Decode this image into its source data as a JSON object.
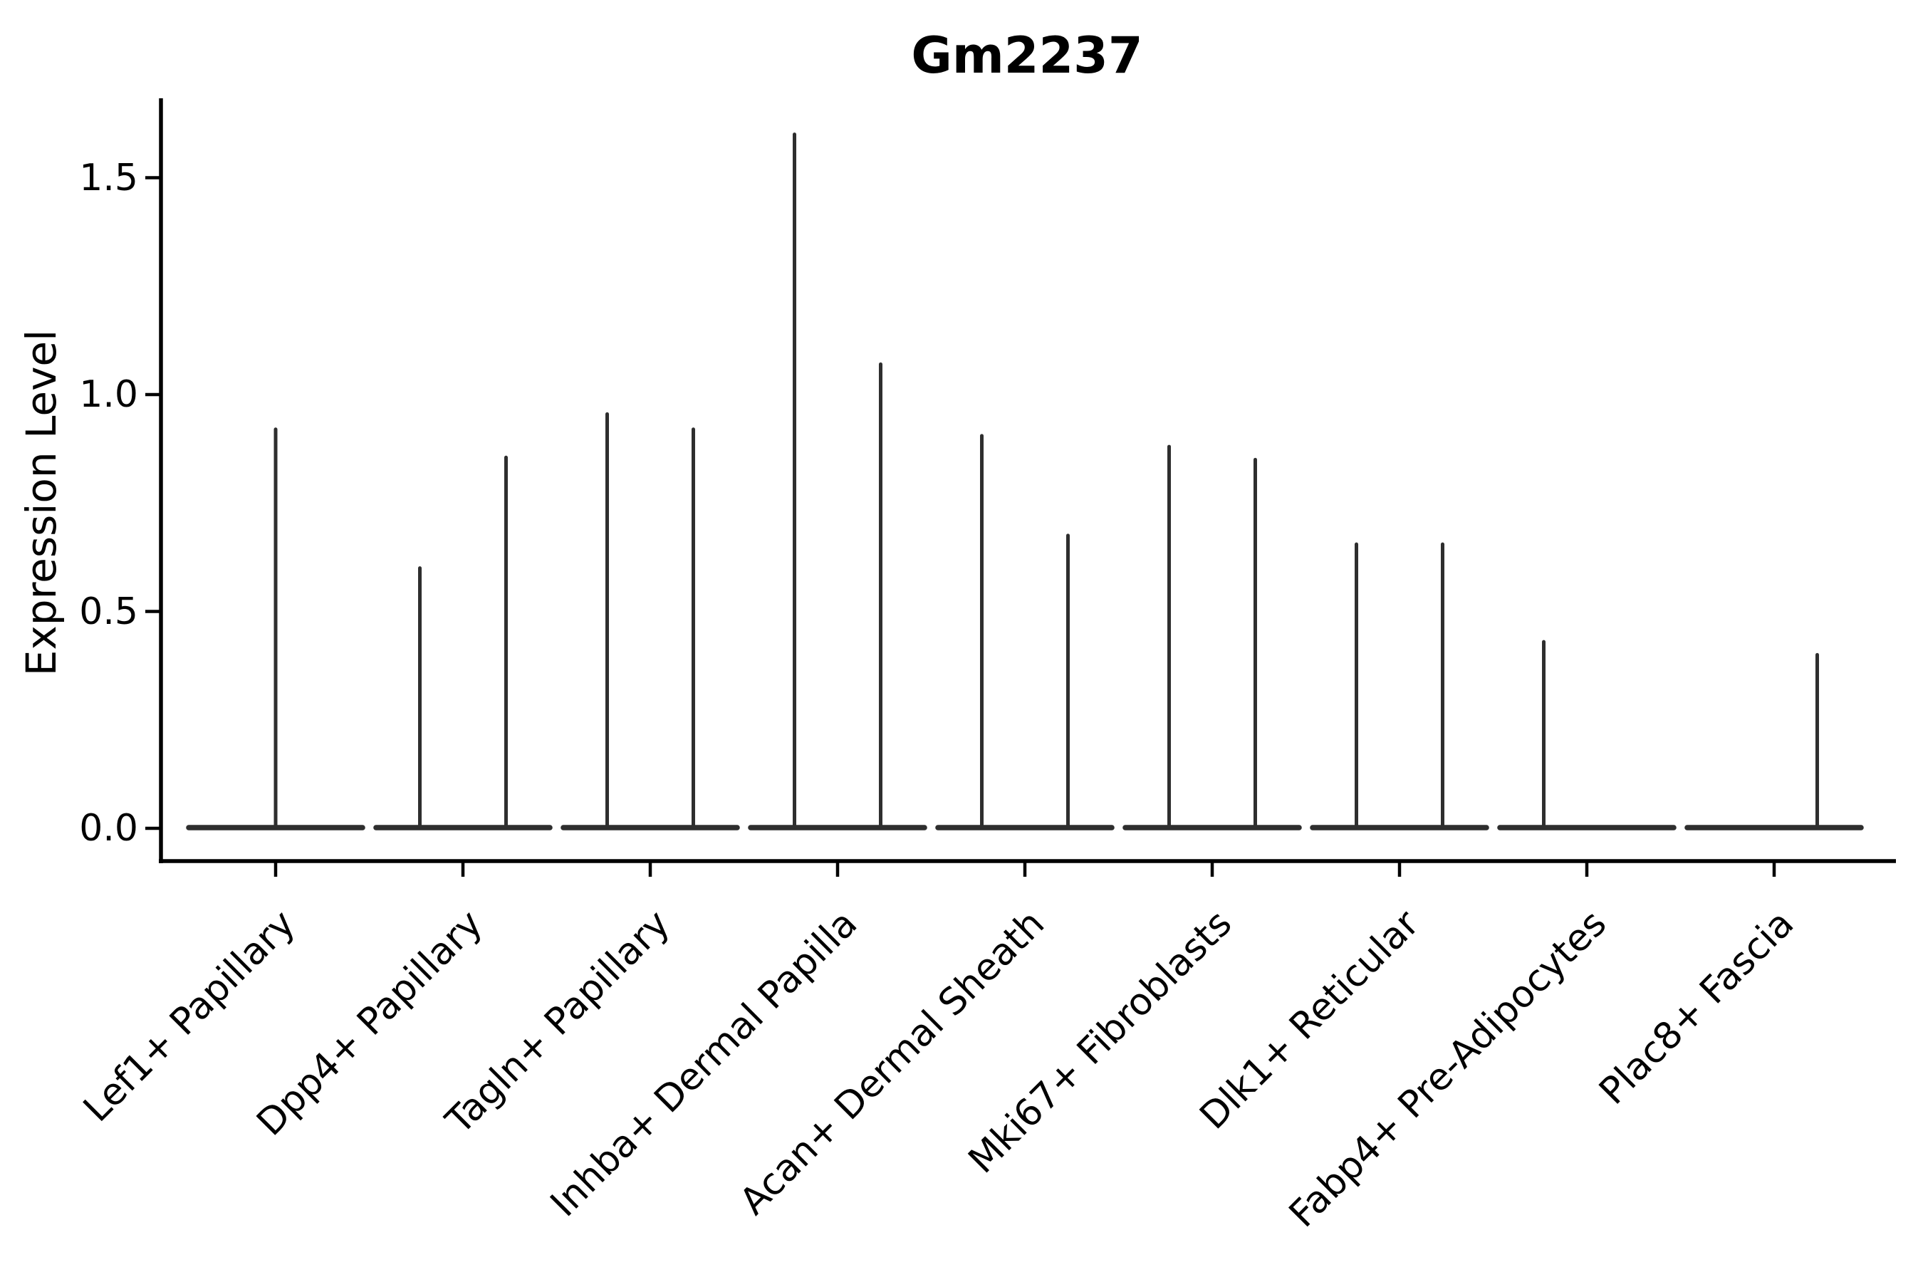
{
  "chart_data": {
    "type": "violin",
    "title": "Gm2237",
    "xlabel": "",
    "ylabel": "Expression Level",
    "yticks": [
      0.0,
      0.5,
      1.0,
      1.5
    ],
    "ytick_labels": [
      "0.0",
      "0.5",
      "1.0",
      "1.5"
    ],
    "ylim": [
      -0.08,
      1.68
    ],
    "grid": false,
    "legend": null,
    "violin_color": "#2e2e2e",
    "axis_color": "#000000",
    "categories": [
      "Lef1+ Papillary",
      "Dpp4+ Papillary",
      "Tagln+ Papillary",
      "Inhba+ Dermal Papilla",
      "Acan+ Dermal Sheath",
      "Mki67+ Fibroblasts",
      "Dlk1+ Reticular",
      "Fabp4+ Pre-Adipocytes",
      "Plac8+ Fascia"
    ],
    "base_half_width": 0.464,
    "violins": [
      {
        "category": "Lef1+ Papillary",
        "spikes": [
          {
            "offset": 0,
            "max": 0.92
          }
        ]
      },
      {
        "category": "Dpp4+ Papillary",
        "spikes": [
          {
            "offset": -0.23,
            "max": 0.6
          },
          {
            "offset": 0.23,
            "max": 0.855
          }
        ]
      },
      {
        "category": "Tagln+ Papillary",
        "spikes": [
          {
            "offset": -0.23,
            "max": 0.955
          },
          {
            "offset": 0.23,
            "max": 0.92
          }
        ]
      },
      {
        "category": "Inhba+ Dermal Papilla",
        "spikes": [
          {
            "offset": -0.23,
            "max": 1.6
          },
          {
            "offset": 0.23,
            "max": 1.07
          }
        ]
      },
      {
        "category": "Acan+ Dermal Sheath",
        "spikes": [
          {
            "offset": -0.23,
            "max": 0.905
          },
          {
            "offset": 0.23,
            "max": 0.675
          }
        ]
      },
      {
        "category": "Mki67+ Fibroblasts",
        "spikes": [
          {
            "offset": -0.23,
            "max": 0.88
          },
          {
            "offset": 0.23,
            "max": 0.85
          }
        ]
      },
      {
        "category": "Dlk1+ Reticular",
        "spikes": [
          {
            "offset": -0.23,
            "max": 0.655
          },
          {
            "offset": 0.23,
            "max": 0.655
          }
        ]
      },
      {
        "category": "Fabp4+ Pre-Adipocytes",
        "spikes": [
          {
            "offset": -0.23,
            "max": 0.43
          }
        ]
      },
      {
        "category": "Plac8+ Fascia",
        "spikes": [
          {
            "offset": 0.23,
            "max": 0.4
          }
        ]
      }
    ]
  }
}
